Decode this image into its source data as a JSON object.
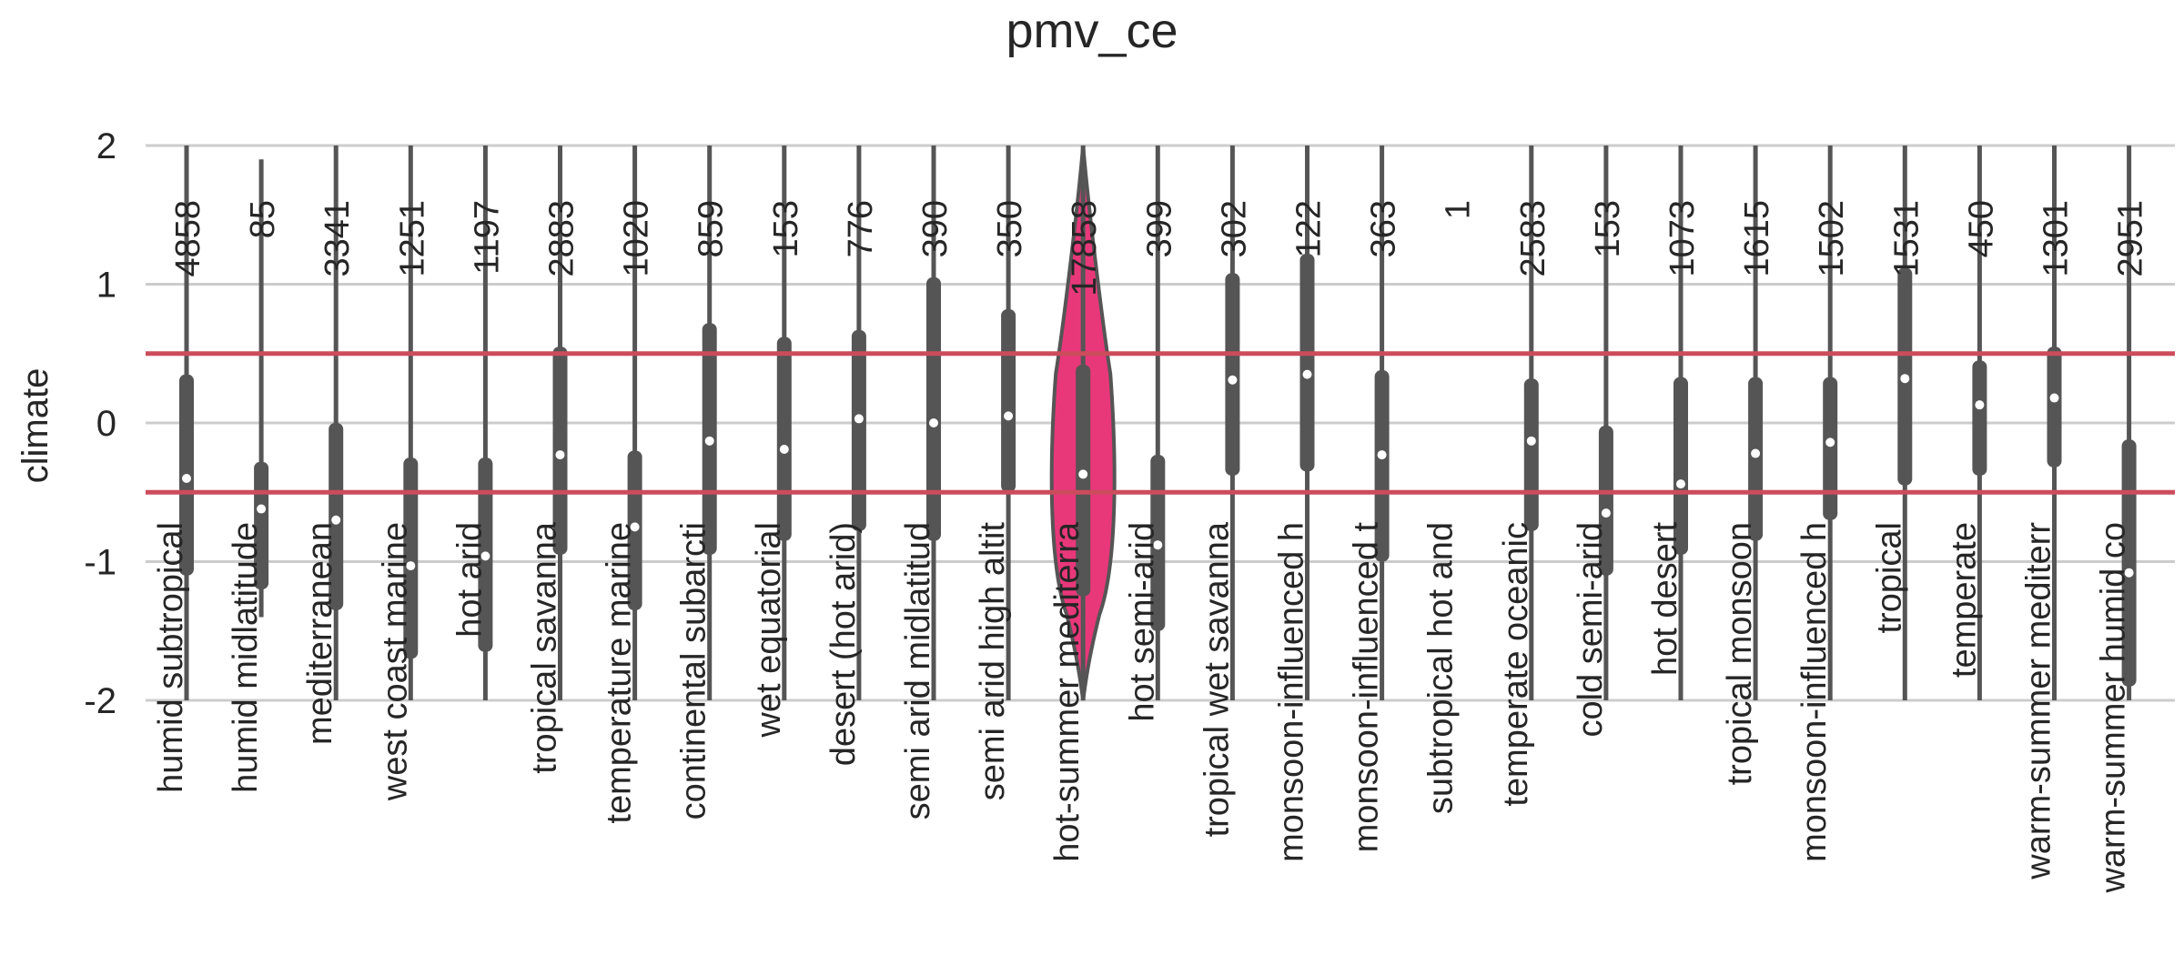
{
  "chart_data": {
    "type": "violin",
    "title": "pmv_ce",
    "ylabel": "climate",
    "xlabel": "",
    "ylim": [
      -2,
      2
    ],
    "yticks": [
      -2,
      -1,
      0,
      1,
      2
    ],
    "grid": "horizontal",
    "reference_lines": [
      0.5,
      -0.5
    ],
    "colors": {
      "violin": "#555555",
      "highlight": "#e8387a",
      "reference_line": "#cc4c5c",
      "grid": "#cccccc"
    },
    "highlighted_category": "hot-summer mediterra",
    "categories": [
      {
        "label": "humid subtropical",
        "count": "4858",
        "median": -0.4,
        "q1": -1.1,
        "q3": 0.35,
        "wmin": -2.0,
        "wmax": 2.0
      },
      {
        "label": "humid midlatitude",
        "count": "85",
        "median": -0.62,
        "q1": -1.2,
        "q3": -0.28,
        "wmin": -1.4,
        "wmax": 1.9
      },
      {
        "label": "mediterranean",
        "count": "3341",
        "median": -0.7,
        "q1": -1.35,
        "q3": 0.0,
        "wmin": -2.0,
        "wmax": 2.0
      },
      {
        "label": "west coast marine",
        "count": "1251",
        "median": -1.03,
        "q1": -1.7,
        "q3": -0.25,
        "wmin": -2.0,
        "wmax": 2.0
      },
      {
        "label": "hot arid",
        "count": "1197",
        "median": -0.96,
        "q1": -1.65,
        "q3": -0.25,
        "wmin": -2.0,
        "wmax": 2.0
      },
      {
        "label": "tropical savanna",
        "count": "2883",
        "median": -0.23,
        "q1": -0.95,
        "q3": 0.55,
        "wmin": -2.0,
        "wmax": 2.0
      },
      {
        "label": "temperature marine",
        "count": "1020",
        "median": -0.75,
        "q1": -1.35,
        "q3": -0.2,
        "wmin": -2.0,
        "wmax": 2.0
      },
      {
        "label": "continental subarcti",
        "count": "859",
        "median": -0.13,
        "q1": -0.95,
        "q3": 0.72,
        "wmin": -2.0,
        "wmax": 2.0
      },
      {
        "label": "wet equatorial",
        "count": "153",
        "median": -0.19,
        "q1": -0.85,
        "q3": 0.62,
        "wmin": -2.0,
        "wmax": 2.0
      },
      {
        "label": "desert (hot arid)",
        "count": "776",
        "median": 0.03,
        "q1": -0.78,
        "q3": 0.67,
        "wmin": -2.0,
        "wmax": 2.0
      },
      {
        "label": "semi arid midlatitud",
        "count": "390",
        "median": 0.0,
        "q1": -0.85,
        "q3": 1.05,
        "wmin": -2.0,
        "wmax": 2.0
      },
      {
        "label": "semi arid high altit",
        "count": "350",
        "median": 0.05,
        "q1": -0.5,
        "q3": 0.82,
        "wmin": -2.0,
        "wmax": 2.0
      },
      {
        "label": "hot-summer mediterra",
        "count": "17858",
        "median": -0.37,
        "q1": -1.25,
        "q3": 0.42,
        "wmin": -2.0,
        "wmax": 2.0
      },
      {
        "label": "hot semi-arid",
        "count": "399",
        "median": -0.88,
        "q1": -1.5,
        "q3": -0.23,
        "wmin": -2.0,
        "wmax": 2.0
      },
      {
        "label": "tropical wet savanna",
        "count": "302",
        "median": 0.31,
        "q1": -0.38,
        "q3": 1.08,
        "wmin": -2.0,
        "wmax": 2.0
      },
      {
        "label": "monsoon-influenced h",
        "count": "122",
        "median": 0.35,
        "q1": -0.35,
        "q3": 1.22,
        "wmin": -2.0,
        "wmax": 2.0
      },
      {
        "label": "monsoon-influenced t",
        "count": "363",
        "median": -0.23,
        "q1": -1.0,
        "q3": 0.38,
        "wmin": -2.0,
        "wmax": 2.0
      },
      {
        "label": "subtropical hot and",
        "count": "1",
        "median": null,
        "q1": null,
        "q3": null,
        "wmin": null,
        "wmax": null
      },
      {
        "label": "temperate oceanic",
        "count": "2583",
        "median": -0.13,
        "q1": -0.78,
        "q3": 0.32,
        "wmin": -2.0,
        "wmax": 2.0
      },
      {
        "label": "cold semi-arid",
        "count": "153",
        "median": -0.65,
        "q1": -1.1,
        "q3": -0.02,
        "wmin": -2.0,
        "wmax": 2.0
      },
      {
        "label": "hot desert",
        "count": "1073",
        "median": -0.44,
        "q1": -0.95,
        "q3": 0.33,
        "wmin": -2.0,
        "wmax": 2.0
      },
      {
        "label": "tropical monsoon",
        "count": "1615",
        "median": -0.22,
        "q1": -0.85,
        "q3": 0.33,
        "wmin": -2.0,
        "wmax": 2.0
      },
      {
        "label": "monsoon-influenced h",
        "count": "1502",
        "median": -0.14,
        "q1": -0.7,
        "q3": 0.33,
        "wmin": -2.0,
        "wmax": 2.0
      },
      {
        "label": "tropical",
        "count": "1531",
        "median": 0.32,
        "q1": -0.45,
        "q3": 1.12,
        "wmin": -2.0,
        "wmax": 2.0
      },
      {
        "label": "temperate",
        "count": "450",
        "median": 0.13,
        "q1": -0.38,
        "q3": 0.45,
        "wmin": -2.0,
        "wmax": 2.0
      },
      {
        "label": "warm-summer mediterr",
        "count": "1301",
        "median": 0.18,
        "q1": -0.32,
        "q3": 0.55,
        "wmin": -2.0,
        "wmax": 2.0
      },
      {
        "label": "warm-summer humid co",
        "count": "2951",
        "median": -1.08,
        "q1": -1.9,
        "q3": -0.12,
        "wmin": -2.0,
        "wmax": 2.0
      }
    ]
  }
}
